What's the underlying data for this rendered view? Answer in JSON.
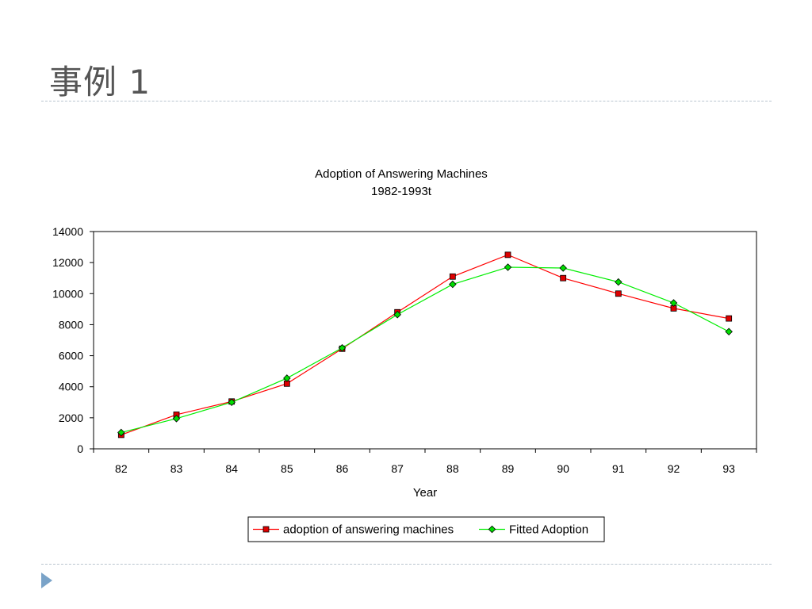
{
  "slide": {
    "title": "事例 1"
  },
  "icons": {
    "nav": "triangle-right-icon"
  },
  "chart_data": {
    "type": "line",
    "title": "Adoption of Answering Machines",
    "subtitle": "1982-1993t",
    "xlabel": "Year",
    "ylabel": "",
    "categories": [
      "82",
      "83",
      "84",
      "85",
      "86",
      "87",
      "88",
      "89",
      "90",
      "91",
      "92",
      "93"
    ],
    "ylim": [
      0,
      14000
    ],
    "yticks": [
      0,
      2000,
      4000,
      6000,
      8000,
      10000,
      12000,
      14000
    ],
    "grid": false,
    "legend_position": "bottom",
    "series": [
      {
        "name": "adoption of answering machines",
        "color": "#ff0000",
        "marker": "square",
        "marker_fill": "#dd0000",
        "values": [
          900,
          2200,
          3050,
          4200,
          6450,
          8800,
          11100,
          12500,
          11000,
          10000,
          9050,
          8400
        ]
      },
      {
        "name": "Fitted Adoption",
        "color": "#00ee00",
        "marker": "diamond",
        "marker_fill": "#00dd00",
        "values": [
          1050,
          1950,
          3000,
          4550,
          6500,
          8650,
          10600,
          11700,
          11650,
          10750,
          9400,
          7550
        ]
      }
    ]
  }
}
